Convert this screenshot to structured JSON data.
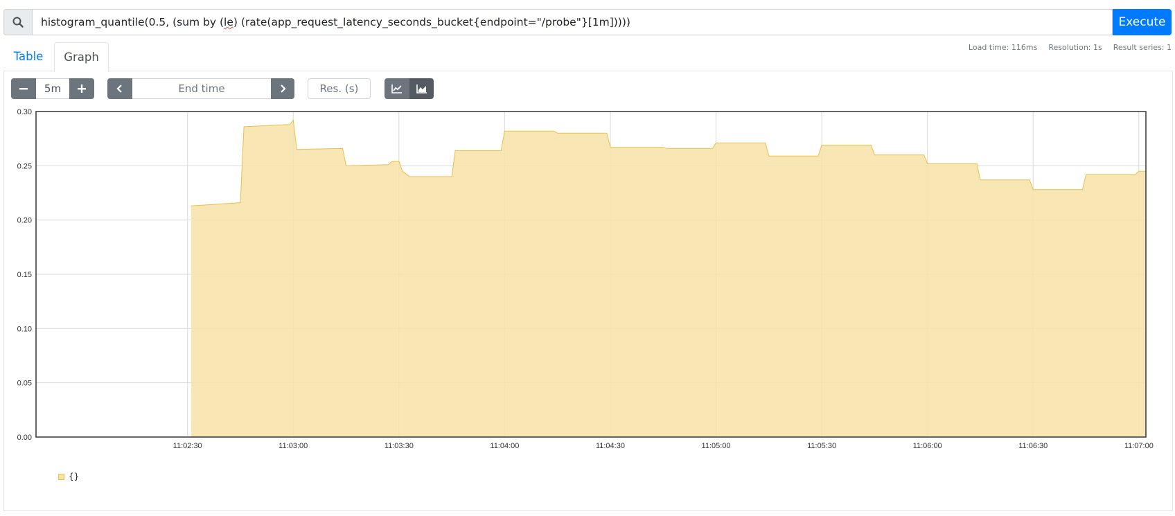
{
  "query": {
    "prefix": "histogram_quantile(0.5, (sum by (",
    "highlight": "le",
    "suffix": ") (rate(app_request_latency_seconds_bucket{endpoint=\"/probe\"}[1m]))))",
    "execute_label": "Execute"
  },
  "tabs": {
    "table": "Table",
    "graph": "Graph"
  },
  "stats": {
    "load_time": "Load time: 116ms",
    "resolution": "Resolution: 1s",
    "result_series": "Result series: 1"
  },
  "controls": {
    "range": "5m",
    "end_time_placeholder": "End time",
    "resolution_placeholder": "Res. (s)"
  },
  "icons": {
    "search": "search-icon",
    "minus": "minus-icon",
    "plus": "plus-icon",
    "prev": "chevron-left-icon",
    "next": "chevron-right-icon",
    "line": "line-chart-icon",
    "stacked": "area-chart-icon"
  },
  "colors": {
    "accent": "#007bff",
    "series_fill": "#f7e2a8",
    "series_line": "#e6c04a"
  },
  "chart_data": {
    "type": "area",
    "title": "",
    "xlabel": "",
    "ylabel": "",
    "ylim": [
      0,
      0.3
    ],
    "y_ticks": [
      "0.00",
      "0.05",
      "0.10",
      "0.15",
      "0.20",
      "0.25",
      "0.30"
    ],
    "x_range": [
      "11:01:47",
      "11:07:02"
    ],
    "x_ticks": [
      "11:02:30",
      "11:03:00",
      "11:03:30",
      "11:04:00",
      "11:04:30",
      "11:05:00",
      "11:05:30",
      "11:06:00",
      "11:06:30",
      "11:07:00"
    ],
    "grid": true,
    "legend_position": "bottom-left",
    "series": [
      {
        "name": "{}",
        "points": [
          [
            "11:02:31",
            0.213
          ],
          [
            "11:02:45",
            0.216
          ],
          [
            "11:02:46",
            0.286
          ],
          [
            "11:02:59",
            0.288
          ],
          [
            "11:03:00",
            0.292
          ],
          [
            "11:03:01",
            0.265
          ],
          [
            "11:03:14",
            0.266
          ],
          [
            "11:03:15",
            0.25
          ],
          [
            "11:03:27",
            0.251
          ],
          [
            "11:03:28",
            0.254
          ],
          [
            "11:03:30",
            0.254
          ],
          [
            "11:03:31",
            0.245
          ],
          [
            "11:03:33",
            0.24
          ],
          [
            "11:03:45",
            0.24
          ],
          [
            "11:03:46",
            0.264
          ],
          [
            "11:03:59",
            0.264
          ],
          [
            "11:04:00",
            0.282
          ],
          [
            "11:04:14",
            0.282
          ],
          [
            "11:04:15",
            0.28
          ],
          [
            "11:04:29",
            0.28
          ],
          [
            "11:04:30",
            0.267
          ],
          [
            "11:04:45",
            0.267
          ],
          [
            "11:04:46",
            0.266
          ],
          [
            "11:04:59",
            0.266
          ],
          [
            "11:05:00",
            0.271
          ],
          [
            "11:05:14",
            0.271
          ],
          [
            "11:05:15",
            0.259
          ],
          [
            "11:05:29",
            0.259
          ],
          [
            "11:05:30",
            0.269
          ],
          [
            "11:05:44",
            0.269
          ],
          [
            "11:05:45",
            0.26
          ],
          [
            "11:05:59",
            0.26
          ],
          [
            "11:06:00",
            0.252
          ],
          [
            "11:06:14",
            0.252
          ],
          [
            "11:06:15",
            0.237
          ],
          [
            "11:06:29",
            0.237
          ],
          [
            "11:06:30",
            0.228
          ],
          [
            "11:06:44",
            0.228
          ],
          [
            "11:06:45",
            0.242
          ],
          [
            "11:06:59",
            0.242
          ],
          [
            "11:07:00",
            0.245
          ],
          [
            "11:07:02",
            0.245
          ]
        ]
      }
    ]
  }
}
